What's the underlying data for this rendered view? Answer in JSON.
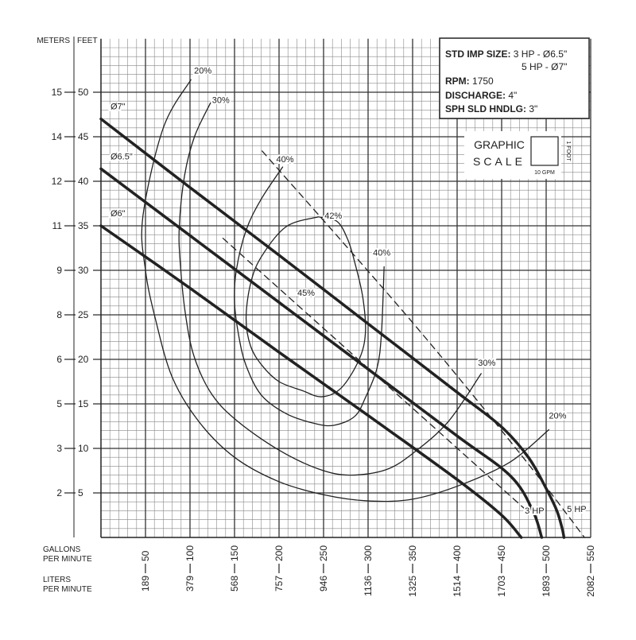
{
  "chart_data": {
    "type": "line",
    "y_label_left": "METERS",
    "y_label_right": "FEET",
    "x_label": [
      "GALLONS",
      "PER MINUTE"
    ],
    "x2_label": [
      "LITERS",
      "PER MINUTE"
    ],
    "xlim": [
      0,
      550
    ],
    "xticks": [
      50,
      100,
      150,
      200,
      250,
      300,
      350,
      400,
      450,
      500,
      550
    ],
    "x2lim": [
      0,
      2082
    ],
    "x2ticks": [
      189,
      379,
      568,
      757,
      946,
      1136,
      1325,
      1514,
      1703,
      1893,
      2082
    ],
    "ylim": [
      0,
      56
    ],
    "yticks": [
      5,
      10,
      15,
      20,
      25,
      30,
      35,
      40,
      45,
      50
    ],
    "y2lim": [
      0,
      17.0688
    ],
    "y2ticks": [
      {
        "value": 1.524,
        "label": "2"
      },
      {
        "value": 3.048,
        "label": "3"
      },
      {
        "value": 4.572,
        "label": "5"
      },
      {
        "value": 6.096,
        "label": "6"
      },
      {
        "value": 7.62,
        "label": "8"
      },
      {
        "value": 9.144,
        "label": "9"
      },
      {
        "value": 10.668,
        "label": "11"
      },
      {
        "value": 12.192,
        "label": "12"
      },
      {
        "value": 13.716,
        "label": "14"
      },
      {
        "value": 15.24,
        "label": "15"
      }
    ],
    "grid": true,
    "series": [
      {
        "name": "Ø7\"",
        "color": "#222222",
        "line_style": "solid",
        "line_width": 3.5,
        "x": [
          0,
          100,
          200,
          300,
          400,
          450,
          480,
          500,
          512,
          518,
          520
        ],
        "values": [
          47,
          39.3,
          31.7,
          24,
          16.3,
          12.4,
          9,
          5.5,
          3,
          1,
          0
        ]
      },
      {
        "name": "Ø6.5\"",
        "color": "#222222",
        "line_style": "solid",
        "line_width": 3.5,
        "x": [
          0,
          100,
          200,
          300,
          400,
          460,
          485,
          495
        ],
        "values": [
          41.4,
          33.9,
          26.4,
          18.9,
          11.4,
          6.9,
          3,
          0
        ]
      },
      {
        "name": "Ø6\"",
        "color": "#222222",
        "line_style": "solid",
        "line_width": 3.5,
        "x": [
          0,
          100,
          200,
          300,
          400,
          450,
          472
        ],
        "values": [
          35,
          28,
          20.8,
          13.7,
          6.5,
          2.5,
          0
        ]
      },
      {
        "name": "20%",
        "color": "#222222",
        "line_style": "solid",
        "line_width": 1.3,
        "x": [
          101,
          70,
          47,
          50,
          61,
          80,
          110,
          150,
          199,
          250,
          300,
          350,
          404,
          460,
          503
        ],
        "values": [
          51.4,
          46,
          36,
          30,
          24.6,
          18,
          13,
          9,
          6.3,
          4.8,
          4.1,
          4.3,
          5.9,
          8.5,
          12.1
        ]
      },
      {
        "name": "30%",
        "color": "#222222",
        "line_style": "solid",
        "line_width": 1.3,
        "x": [
          123,
          105,
          94,
          88,
          89,
          95,
          105,
          125,
          154,
          200,
          244,
          279,
          320,
          351,
          390,
          427
        ],
        "values": [
          48.8,
          45,
          40.7,
          35,
          30.9,
          25,
          20.2,
          16,
          13,
          9.8,
          7.7,
          7,
          7.6,
          9.5,
          13,
          18.4
        ]
      },
      {
        "name": "40%",
        "color": "#222222",
        "line_style": "solid",
        "line_width": 1.3,
        "x": [
          204,
          180,
          163,
          152,
          150,
          155,
          163,
          180,
          208,
          240,
          262,
          285,
          297,
          310,
          315,
          318
        ],
        "values": [
          41.6,
          38,
          34.5,
          30,
          26.4,
          22.5,
          19.3,
          16,
          13.9,
          12.8,
          12.6,
          13.6,
          15.7,
          19,
          22.9,
          30.4
        ]
      },
      {
        "name": "42%",
        "color": "#222222",
        "line_style": "solid",
        "line_width": 1.3,
        "x": [
          244,
          265,
          277,
          285,
          294,
          297,
          290,
          270,
          248,
          226,
          200,
          181,
          168,
          163,
          168,
          180,
          208,
          244
        ],
        "values": [
          36,
          35.5,
          33.5,
          30.9,
          27,
          23,
          20,
          16.8,
          15.8,
          16.5,
          17.5,
          19.3,
          21.5,
          24.6,
          28.5,
          31.5,
          34.9,
          36
        ]
      },
      {
        "name": "3 HP",
        "color": "#222222",
        "line_style": "dashed",
        "line_width": 1.3,
        "x": [
          137,
          300,
          476
        ],
        "values": [
          33.6,
          19,
          3.2
        ]
      },
      {
        "name": "5 HP",
        "color": "#222222",
        "line_style": "dashed",
        "line_width": 1.3,
        "x": [
          181,
          346,
          470,
          543
        ],
        "values": [
          43.4,
          24.6,
          9.5,
          0
        ]
      }
    ],
    "annotations": [
      "45%"
    ],
    "info_box": [
      {
        "label": "STD IMP SIZE:",
        "value": "3 HP - Ø6.5\""
      },
      {
        "value": "5 HP - Ø7\""
      },
      {
        "label": "RPM:",
        "value": "1750"
      },
      {
        "label": "DISCHARGE:",
        "value": "4\""
      },
      {
        "label": "SPH SLD HNDLG:",
        "value": "3\""
      }
    ],
    "graphic_scale": {
      "title_1": "GRAPHIC",
      "title_2": "SCALE",
      "height_label": "1 FOOT",
      "width_label": "10 GPM"
    }
  }
}
